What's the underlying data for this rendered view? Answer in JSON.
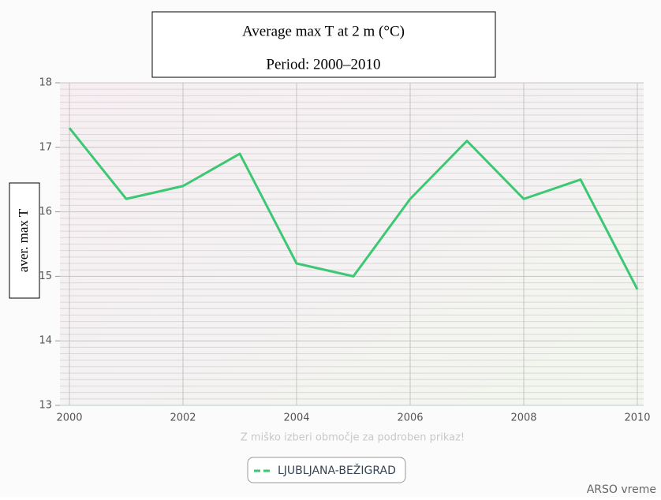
{
  "chart_data": {
    "type": "line",
    "title": "Average max T at 2 m (°C)",
    "subtitle": "Period: 2000–2010",
    "y_label": "aver. max T",
    "x_note": "Z miško izberi območje za podroben prikaz!",
    "credit": "ARSO vreme",
    "x": [
      2000,
      2001,
      2002,
      2003,
      2004,
      2005,
      2006,
      2007,
      2008,
      2009,
      2010
    ],
    "series": [
      {
        "name": "LJUBLJANA-BEŽIGRAD",
        "color": "#3cc873",
        "values": [
          17.3,
          16.2,
          16.4,
          16.9,
          15.2,
          15.0,
          16.2,
          17.1,
          16.2,
          16.5,
          14.8
        ]
      }
    ],
    "xlim": [
      2000,
      2010
    ],
    "xticks": [
      2000,
      2002,
      2004,
      2006,
      2008,
      2010
    ],
    "ylim": [
      13,
      18
    ],
    "yticks": [
      13,
      14,
      15,
      16,
      17,
      18
    ],
    "grid": true
  }
}
